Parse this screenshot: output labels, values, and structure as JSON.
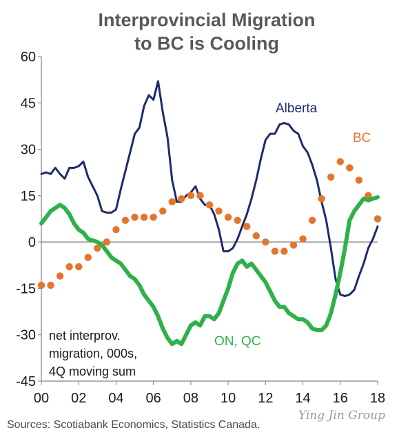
{
  "chart_data": {
    "type": "line",
    "title": [
      "Interprovincial Migration",
      "to BC is Cooling"
    ],
    "xlabel": "",
    "ylabel": "",
    "xlim": [
      2000,
      2018
    ],
    "ylim": [
      -45,
      60
    ],
    "x_ticks": [
      2000,
      2002,
      2004,
      2006,
      2008,
      2010,
      2012,
      2014,
      2016,
      2018
    ],
    "x_tick_labels": [
      "00",
      "02",
      "04",
      "06",
      "08",
      "10",
      "12",
      "14",
      "16",
      "18"
    ],
    "y_ticks": [
      -45,
      -30,
      -15,
      0,
      15,
      30,
      45,
      60
    ],
    "y_tick_labels": [
      "-45",
      "-30",
      "-15",
      "0",
      "15",
      "30",
      "45",
      "60"
    ],
    "grid": false,
    "note": [
      "net interprov.",
      "migration, 000s,",
      "4Q moving sum"
    ],
    "source": "Sources: Scotiabank Economics, Statistics Canada.",
    "watermark": "Ying Jin Group",
    "series": [
      {
        "name": "Alberta",
        "style": "line",
        "color": "#1f2a6e",
        "x": [
          2000.0,
          2000.25,
          2000.5,
          2000.75,
          2001.0,
          2001.25,
          2001.5,
          2001.75,
          2002.0,
          2002.25,
          2002.5,
          2002.75,
          2003.0,
          2003.25,
          2003.5,
          2003.75,
          2004.0,
          2004.25,
          2004.5,
          2004.75,
          2005.0,
          2005.25,
          2005.5,
          2005.75,
          2006.0,
          2006.25,
          2006.5,
          2006.75,
          2007.0,
          2007.25,
          2007.5,
          2007.75,
          2008.0,
          2008.25,
          2008.5,
          2008.75,
          2009.0,
          2009.25,
          2009.5,
          2009.75,
          2010.0,
          2010.25,
          2010.5,
          2010.75,
          2011.0,
          2011.25,
          2011.5,
          2011.75,
          2012.0,
          2012.25,
          2012.5,
          2012.75,
          2013.0,
          2013.25,
          2013.5,
          2013.75,
          2014.0,
          2014.25,
          2014.5,
          2014.75,
          2015.0,
          2015.25,
          2015.5,
          2015.75,
          2016.0,
          2016.25,
          2016.5,
          2016.75,
          2017.0,
          2017.25,
          2017.5,
          2017.75,
          2018.0
        ],
        "y": [
          22,
          22.5,
          22,
          24,
          22,
          20.5,
          24,
          24,
          24.5,
          26,
          21,
          18,
          15,
          10,
          9.5,
          9.5,
          10.5,
          17,
          23,
          29,
          35,
          37,
          44,
          47.5,
          46,
          52,
          42,
          34,
          20,
          13,
          13,
          15,
          16,
          18,
          14,
          12,
          12,
          9,
          4,
          -3,
          -3,
          -2,
          1,
          5,
          9,
          14,
          20,
          27,
          33,
          35,
          35,
          38,
          38.5,
          38,
          36,
          35,
          31,
          29,
          25,
          20,
          13,
          7,
          -2,
          -12,
          -17,
          -17.5,
          -17,
          -15.5,
          -11,
          -7,
          -2,
          1,
          5
        ]
      },
      {
        "name": "BC",
        "style": "dotted",
        "color": "#e4752d",
        "x": [
          2000.0,
          2000.5,
          2001.0,
          2001.5,
          2002.0,
          2002.5,
          2003.0,
          2003.5,
          2004.0,
          2004.5,
          2005.0,
          2005.5,
          2006.0,
          2006.5,
          2007.0,
          2007.5,
          2008.0,
          2008.5,
          2009.0,
          2009.5,
          2010.0,
          2010.5,
          2011.0,
          2011.5,
          2012.0,
          2012.5,
          2013.0,
          2013.5,
          2014.0,
          2014.5,
          2015.0,
          2015.5,
          2016.0,
          2016.5,
          2017.0,
          2017.5,
          2018.0
        ],
        "y": [
          -14,
          -14,
          -11,
          -8,
          -8,
          -5,
          -2,
          0,
          4,
          7,
          8,
          8,
          8,
          10,
          13,
          14,
          15,
          15,
          12,
          10,
          8,
          7,
          5,
          2,
          0,
          -3,
          -3,
          -1,
          1,
          7,
          14,
          21,
          26,
          24,
          20,
          15,
          7.5
        ]
      },
      {
        "name": "ON, QC",
        "style": "line",
        "color": "#2fb14a",
        "x": [
          2000.0,
          2000.25,
          2000.5,
          2000.75,
          2001.0,
          2001.25,
          2001.5,
          2001.75,
          2002.0,
          2002.25,
          2002.5,
          2002.75,
          2003.0,
          2003.25,
          2003.5,
          2003.75,
          2004.0,
          2004.25,
          2004.5,
          2004.75,
          2005.0,
          2005.25,
          2005.5,
          2005.75,
          2006.0,
          2006.25,
          2006.5,
          2006.75,
          2007.0,
          2007.25,
          2007.5,
          2007.75,
          2008.0,
          2008.25,
          2008.5,
          2008.75,
          2009.0,
          2009.25,
          2009.5,
          2009.75,
          2010.0,
          2010.25,
          2010.5,
          2010.75,
          2011.0,
          2011.25,
          2011.5,
          2011.75,
          2012.0,
          2012.25,
          2012.5,
          2012.75,
          2013.0,
          2013.25,
          2013.5,
          2013.75,
          2014.0,
          2014.25,
          2014.5,
          2014.75,
          2015.0,
          2015.25,
          2015.5,
          2015.75,
          2016.0,
          2016.25,
          2016.5,
          2016.75,
          2017.0,
          2017.25,
          2017.5,
          2017.75,
          2018.0
        ],
        "y": [
          6,
          8,
          10,
          11,
          12,
          11,
          9,
          6,
          4,
          3,
          1,
          0.5,
          0,
          -1,
          -3,
          -5,
          -6,
          -7,
          -9,
          -11,
          -12,
          -14,
          -17,
          -19,
          -21,
          -24,
          -28,
          -31,
          -33,
          -32,
          -33,
          -30,
          -27,
          -26,
          -27,
          -24,
          -24,
          -25,
          -23,
          -19,
          -15,
          -10,
          -7,
          -6,
          -8,
          -7,
          -9,
          -11,
          -13,
          -16,
          -19,
          -21,
          -21,
          -23,
          -24,
          -25,
          -25,
          -26,
          -28,
          -28.5,
          -28.5,
          -27,
          -23,
          -17,
          -10,
          -2,
          7,
          10,
          12,
          14,
          13.5,
          14,
          14.5
        ]
      }
    ],
    "series_labels": [
      "Alberta",
      "BC",
      "ON, QC"
    ]
  }
}
